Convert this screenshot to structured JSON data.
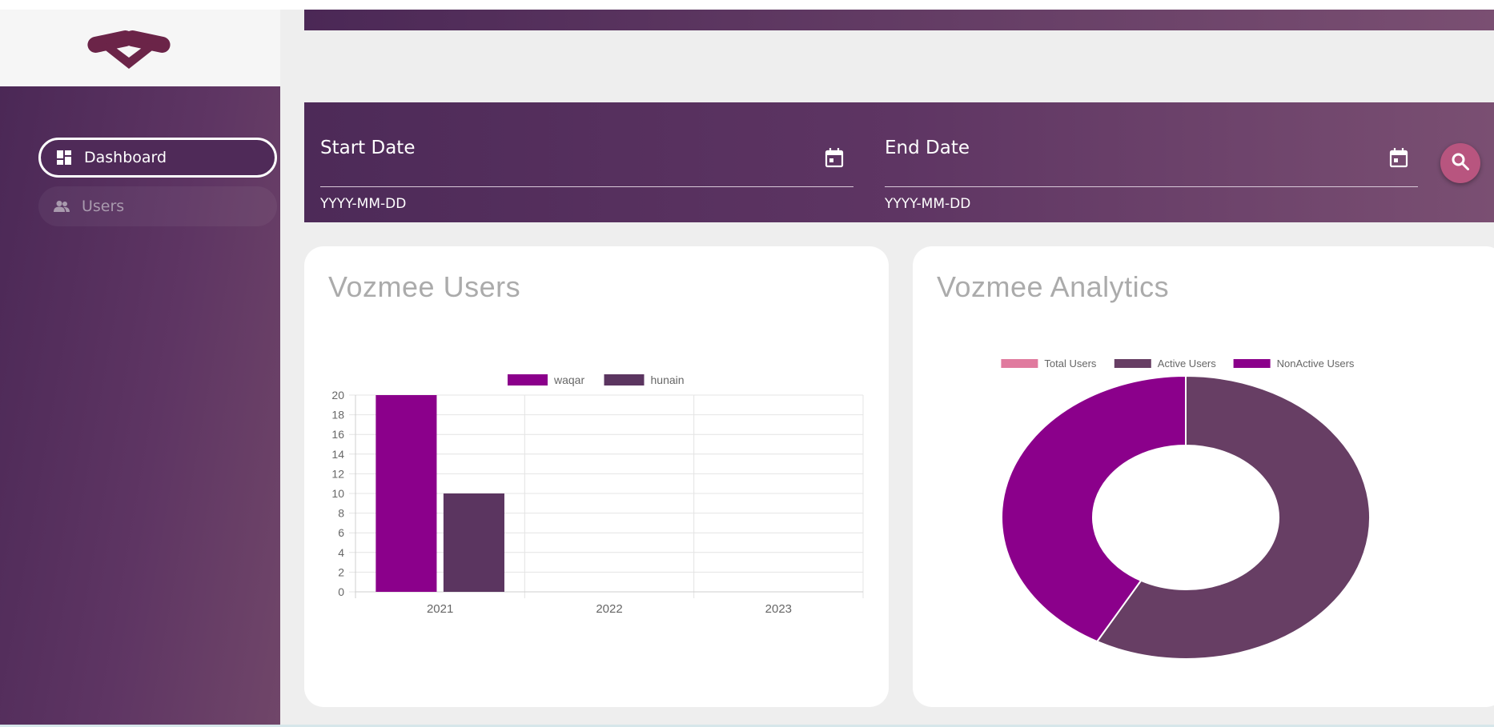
{
  "brand": {
    "logo": "vozmee-logo-icon"
  },
  "sidebar": {
    "items": [
      {
        "label": "Dashboard",
        "icon": "dashboard-icon",
        "active": true
      },
      {
        "label": "Users",
        "icon": "users-icon",
        "active": false
      }
    ]
  },
  "filters": {
    "start_date": {
      "label": "Start Date",
      "hint": "YYYY-MM-DD",
      "icon": "calendar-icon"
    },
    "end_date": {
      "label": "End Date",
      "hint": "YYYY-MM-DD",
      "icon": "calendar-icon"
    },
    "search_icon": "search-icon"
  },
  "colors": {
    "purple": "#8b008b",
    "plum": "#5b3560",
    "pink": "#e07a9e",
    "active": "#673e64"
  },
  "cards": {
    "users": {
      "title": "Vozmee Users"
    },
    "analytics": {
      "title": "Vozmee Analytics"
    }
  },
  "chart_data": [
    {
      "type": "bar",
      "title": "Vozmee Users",
      "categories": [
        "2021",
        "2022",
        "2023"
      ],
      "series": [
        {
          "name": "waqar",
          "values": [
            20,
            0,
            0
          ],
          "color": "#8b008b"
        },
        {
          "name": "hunain",
          "values": [
            10,
            0,
            0
          ],
          "color": "#5b3560"
        }
      ],
      "ylim": [
        0,
        20
      ],
      "yticks": [
        0,
        2,
        4,
        6,
        8,
        10,
        12,
        14,
        16,
        18,
        20
      ],
      "legend": "top-center",
      "grid": true
    },
    {
      "type": "pie",
      "variant": "doughnut",
      "title": "Vozmee Analytics",
      "labels": [
        "Total Users",
        "Active Users",
        "NonActive Users"
      ],
      "values": [
        0,
        58,
        42
      ],
      "colors": [
        "#e07a9e",
        "#673e64",
        "#8b008b"
      ],
      "legend": "top-center"
    }
  ]
}
